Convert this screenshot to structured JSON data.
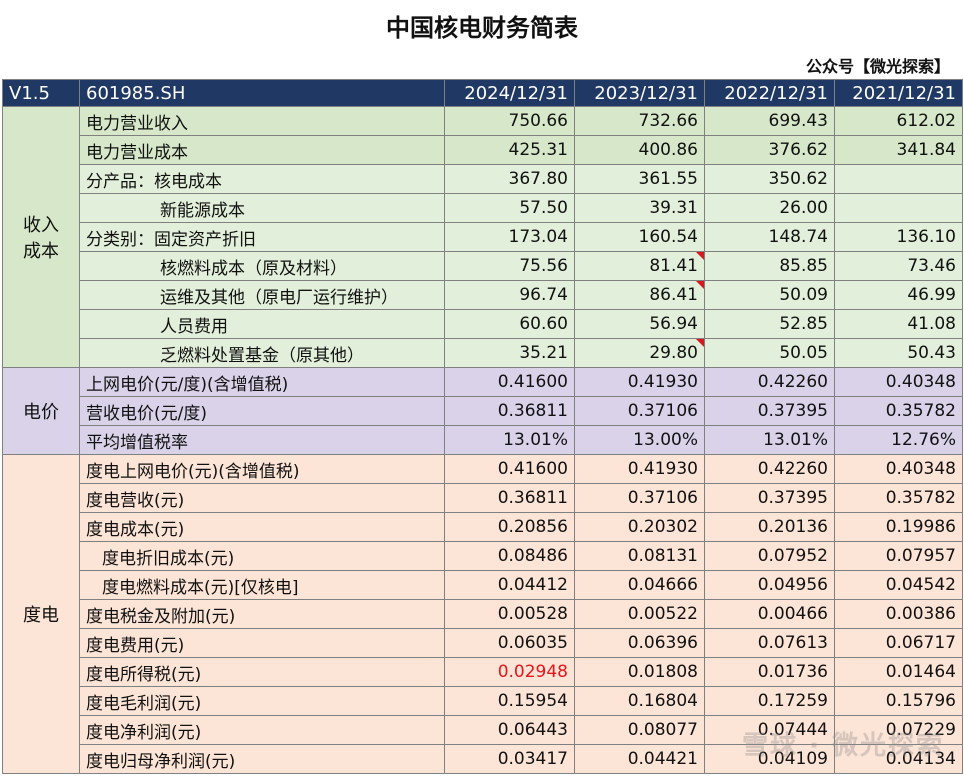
{
  "title": "中国核电财务简表",
  "subtitle": "公众号【微光探索】",
  "watermark": "雪球 · 微光探索",
  "header": {
    "version": "V1.5",
    "code": "601985.SH",
    "dates": [
      "2024/12/31",
      "2023/12/31",
      "2022/12/31",
      "2021/12/31"
    ]
  },
  "groups": {
    "income_cost": "收入\n成本",
    "price": "电价",
    "per_kwh": "度电"
  },
  "rows": [
    {
      "label": "电力营业收入",
      "values": [
        "750.66",
        "732.66",
        "699.43",
        "612.02"
      ]
    },
    {
      "label": "电力营业成本",
      "values": [
        "425.31",
        "400.86",
        "376.62",
        "341.84"
      ]
    },
    {
      "label": "分产品：核电成本",
      "values": [
        "367.80",
        "361.55",
        "350.62",
        ""
      ]
    },
    {
      "label": "新能源成本",
      "values": [
        "57.50",
        "39.31",
        "26.00",
        ""
      ]
    },
    {
      "label": "分类别：固定资产折旧",
      "values": [
        "173.04",
        "160.54",
        "148.74",
        "136.10"
      ]
    },
    {
      "label": "核燃料成本（原及材料）",
      "values": [
        "75.56",
        "81.41",
        "85.85",
        "73.46"
      ]
    },
    {
      "label": "运维及其他（原电厂运行维护）",
      "values": [
        "96.74",
        "86.41",
        "50.09",
        "46.99"
      ]
    },
    {
      "label": "人员费用",
      "values": [
        "60.60",
        "56.94",
        "52.85",
        "41.08"
      ]
    },
    {
      "label": "乏燃料处置基金（原其他）",
      "values": [
        "35.21",
        "29.80",
        "50.05",
        "50.43"
      ]
    },
    {
      "label": "上网电价(元/度)(含增值税)",
      "values": [
        "0.41600",
        "0.41930",
        "0.42260",
        "0.40348"
      ]
    },
    {
      "label": "营收电价(元/度)",
      "values": [
        "0.36811",
        "0.37106",
        "0.37395",
        "0.35782"
      ]
    },
    {
      "label": "平均增值税率",
      "values": [
        "13.01%",
        "13.00%",
        "13.01%",
        "12.76%"
      ]
    },
    {
      "label": "度电上网电价(元)(含增值税)",
      "values": [
        "0.41600",
        "0.41930",
        "0.42260",
        "0.40348"
      ]
    },
    {
      "label": "度电营收(元)",
      "values": [
        "0.36811",
        "0.37106",
        "0.37395",
        "0.35782"
      ]
    },
    {
      "label": "度电成本(元)",
      "values": [
        "0.20856",
        "0.20302",
        "0.20136",
        "0.19986"
      ]
    },
    {
      "label": "度电折旧成本(元)",
      "values": [
        "0.08486",
        "0.08131",
        "0.07952",
        "0.07957"
      ]
    },
    {
      "label": "度电燃料成本(元)[仅核电]",
      "values": [
        "0.04412",
        "0.04666",
        "0.04956",
        "0.04542"
      ]
    },
    {
      "label": "度电税金及附加(元)",
      "values": [
        "0.00528",
        "0.00522",
        "0.00466",
        "0.00386"
      ]
    },
    {
      "label": "度电费用(元)",
      "values": [
        "0.06035",
        "0.06396",
        "0.07613",
        "0.06717"
      ]
    },
    {
      "label": "度电所得税(元)",
      "values": [
        "0.02948",
        "0.01808",
        "0.01736",
        "0.01464"
      ]
    },
    {
      "label": "度电毛利润(元)",
      "values": [
        "0.15954",
        "0.16804",
        "0.17259",
        "0.15796"
      ]
    },
    {
      "label": "度电净利润(元)",
      "values": [
        "0.06443",
        "0.08077",
        "0.07444",
        "0.07229"
      ]
    },
    {
      "label": "度电归母净利润(元)",
      "values": [
        "0.03417",
        "0.04421",
        "0.04109",
        "0.04134"
      ]
    }
  ]
}
